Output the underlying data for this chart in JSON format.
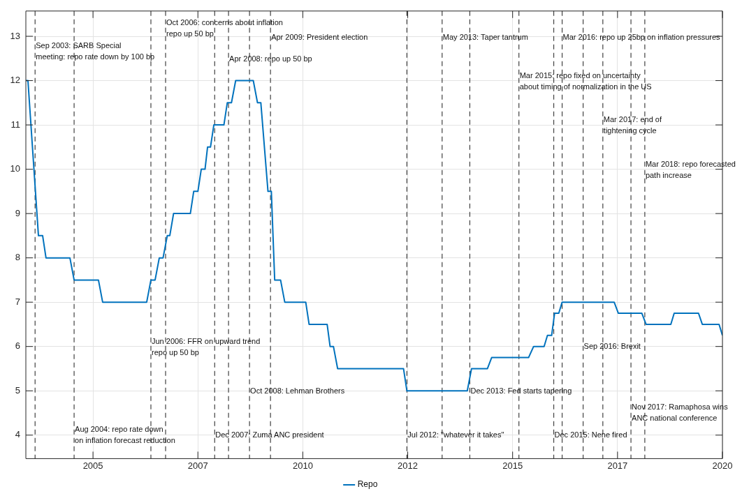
{
  "chart_data": {
    "type": "line",
    "x": [
      2003.4,
      2003.45,
      2003.7,
      2003.8,
      2003.88,
      2004.45,
      2004.55,
      2005.13,
      2005.23,
      2006.28,
      2006.38,
      2006.48,
      2006.58,
      2006.67,
      2006.77,
      2006.83,
      2006.92,
      2007.32,
      2007.4,
      2007.5,
      2007.58,
      2007.67,
      2007.73,
      2007.8,
      2007.88,
      2008.12,
      2008.2,
      2008.3,
      2008.4,
      2008.82,
      2008.92,
      2009.0,
      2009.17,
      2009.25,
      2009.33,
      2009.47,
      2009.57,
      2010.07,
      2010.15,
      2010.58,
      2010.65,
      2010.73,
      2010.83,
      2012.4,
      2012.48,
      2013.92,
      2014.02,
      2014.4,
      2014.5,
      2015.38,
      2015.5,
      2015.75,
      2015.83,
      2015.93,
      2016.0,
      2016.1,
      2016.18,
      2017.42,
      2017.52,
      2018.08,
      2018.18,
      2018.77,
      2018.85,
      2019.43,
      2019.52,
      2019.92,
      2020.0
    ],
    "series": [
      {
        "name": "Repo",
        "color": "#0072bd",
        "values": [
          12,
          12,
          8.5,
          8.5,
          8,
          8,
          7.5,
          7.5,
          7,
          7,
          7.5,
          7.5,
          8,
          8,
          8.5,
          8.5,
          9,
          9,
          9.5,
          9.5,
          10,
          10,
          10.5,
          10.5,
          11,
          11,
          11.5,
          11.5,
          12,
          12,
          11.5,
          11.5,
          9.5,
          9.5,
          7.5,
          7.5,
          7,
          7,
          6.5,
          6.5,
          6,
          6,
          5.5,
          5.5,
          5,
          5,
          5.5,
          5.5,
          5.75,
          5.75,
          6,
          6,
          6.25,
          6.25,
          6.75,
          6.75,
          7,
          7,
          6.75,
          6.75,
          6.5,
          6.5,
          6.75,
          6.75,
          6.5,
          6.5,
          6.25
        ]
      }
    ],
    "xlim": [
      2003.4,
      2020
    ],
    "xticks": [
      {
        "value": 2005,
        "label": "2005"
      },
      {
        "value": 2007.5,
        "label": "2007"
      },
      {
        "value": 2010,
        "label": "2010"
      },
      {
        "value": 2012.5,
        "label": "2012"
      },
      {
        "value": 2015,
        "label": "2015"
      },
      {
        "value": 2017.5,
        "label": "2017"
      },
      {
        "value": 2020,
        "label": "2020"
      }
    ],
    "ylim": [
      3.47,
      13.57
    ],
    "yticks": [
      4,
      5,
      6,
      7,
      8,
      9,
      10,
      11,
      12,
      13
    ],
    "grid": true,
    "legend": "bottom",
    "marker": "none",
    "line_style": "solid",
    "ref_lines": [
      {
        "axis": "x",
        "value": 2003.62,
        "line_style": "dashed",
        "color": "#404040"
      },
      {
        "axis": "x",
        "value": 2004.55,
        "line_style": "dashed",
        "color": "#404040"
      },
      {
        "axis": "x",
        "value": 2006.38,
        "line_style": "dashed",
        "color": "#404040"
      },
      {
        "axis": "x",
        "value": 2006.73,
        "line_style": "dashed",
        "color": "#404040"
      },
      {
        "axis": "x",
        "value": 2007.9,
        "line_style": "dashed",
        "color": "#404040"
      },
      {
        "axis": "x",
        "value": 2008.23,
        "line_style": "dashed",
        "color": "#404040"
      },
      {
        "axis": "x",
        "value": 2008.73,
        "line_style": "dashed",
        "color": "#404040"
      },
      {
        "axis": "x",
        "value": 2009.23,
        "line_style": "dashed",
        "color": "#404040"
      },
      {
        "axis": "x",
        "value": 2012.48,
        "line_style": "dashed",
        "color": "#404040"
      },
      {
        "axis": "x",
        "value": 2013.32,
        "line_style": "dashed",
        "color": "#404040"
      },
      {
        "axis": "x",
        "value": 2013.98,
        "line_style": "dashed",
        "color": "#404040"
      },
      {
        "axis": "x",
        "value": 2015.15,
        "line_style": "dashed",
        "color": "#404040"
      },
      {
        "axis": "x",
        "value": 2015.98,
        "line_style": "dashed",
        "color": "#404040"
      },
      {
        "axis": "x",
        "value": 2016.18,
        "line_style": "dashed",
        "color": "#404040"
      },
      {
        "axis": "x",
        "value": 2016.68,
        "line_style": "dashed",
        "color": "#404040"
      },
      {
        "axis": "x",
        "value": 2017.15,
        "line_style": "dashed",
        "color": "#404040"
      },
      {
        "axis": "x",
        "value": 2017.82,
        "line_style": "dashed",
        "color": "#404040"
      },
      {
        "axis": "x",
        "value": 2018.15,
        "line_style": "dashed",
        "color": "#404040"
      }
    ],
    "annotations": [
      {
        "text": "Sep 2003: SARB Special\nmeeting: repo rate down by 100 bp",
        "x": 2003.62,
        "y": 12.9
      },
      {
        "text": "Aug 2004: repo rate down\non inflation forecast reduction",
        "x": 2004.55,
        "y": 4.24
      },
      {
        "text": "Jun 2006: FFR on upward trend\nrepo up 50 bp",
        "x": 2006.38,
        "y": 6.22
      },
      {
        "text": "Oct 2006: concerns about inflation\nrepo up 50 bp",
        "x": 2006.73,
        "y": 13.42
      },
      {
        "text": "Dec 2007: Zuma ANC president",
        "x": 2007.9,
        "y": 4.12
      },
      {
        "text": "Apr 2008: repo up 50 bp",
        "x": 2008.23,
        "y": 12.6
      },
      {
        "text": "Oct 2008: Lehman Brothers",
        "x": 2008.73,
        "y": 5.11
      },
      {
        "text": "Apr 2009: President election",
        "x": 2009.23,
        "y": 13.09
      },
      {
        "text": "Jul 2012: \"whatever it takes\"",
        "x": 2012.48,
        "y": 4.12
      },
      {
        "text": "May 2013: Taper tantrum",
        "x": 2013.32,
        "y": 13.09
      },
      {
        "text": "Dec 2013: Fed starts tapering",
        "x": 2013.98,
        "y": 5.11
      },
      {
        "text": "Mar 2015: repo fixed on uncertainty\nabout timing of normalization in the US",
        "x": 2015.15,
        "y": 12.22
      },
      {
        "text": "Dec 2015: Nene fired",
        "x": 2015.98,
        "y": 4.12
      },
      {
        "text": "Mar 2016: repo up 25bp on inflation pressures",
        "x": 2016.18,
        "y": 13.09
      },
      {
        "text": "Sep 2016: Brexit",
        "x": 2016.68,
        "y": 6.11
      },
      {
        "text": "Mar 2017: end of\ntightening cycle",
        "x": 2017.15,
        "y": 11.23
      },
      {
        "text": "Nov 2017: Ramaphosa wins\nANC national conference",
        "x": 2017.82,
        "y": 4.74
      },
      {
        "text": "Mar 2018: repo forecasted\npath increase",
        "x": 2018.15,
        "y": 10.23
      }
    ]
  }
}
